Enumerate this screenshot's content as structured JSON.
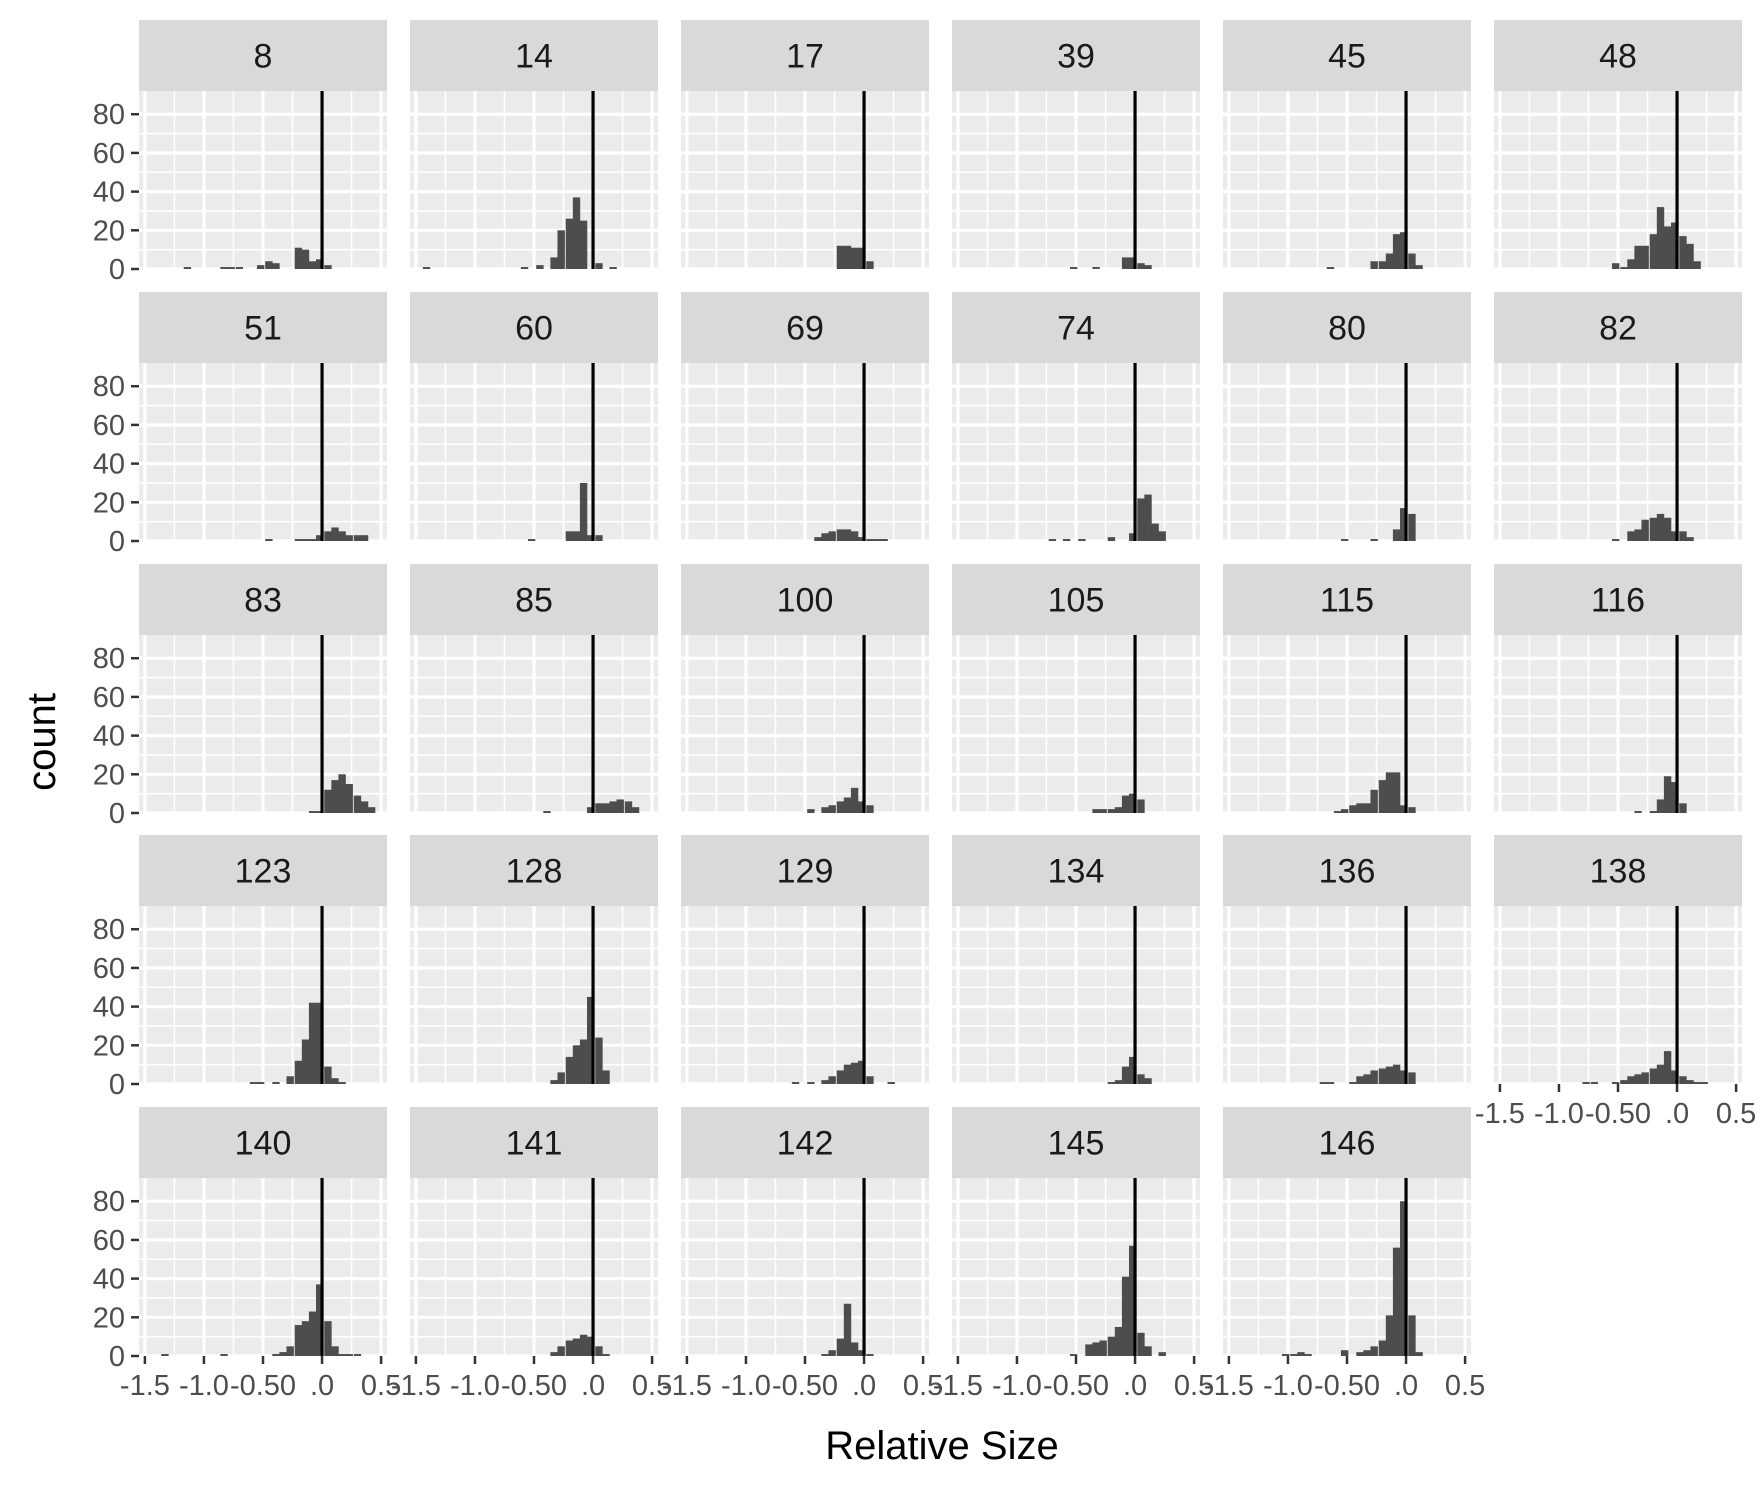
{
  "chart_data": {
    "type": "bar",
    "subtype": "faceted-histogram",
    "xlabel": "Relative Size",
    "ylabel": "count",
    "xlim": [
      -1.55,
      0.55
    ],
    "ylim": [
      0,
      92
    ],
    "x_ticks": [
      -1.5,
      -1.0,
      -0.5,
      0.0,
      0.5
    ],
    "x_tick_labels": [
      "-1.5",
      "-1.0",
      "-0.50",
      ".0",
      "0.5"
    ],
    "y_ticks": [
      0,
      20,
      40,
      60,
      80
    ],
    "y_tick_labels": [
      "0",
      "20",
      "40",
      "60",
      "80"
    ],
    "reference_line_x": 0,
    "bin_width": 0.0625,
    "grid": true,
    "columns": 6,
    "colors": {
      "panel_background": "#ebebeb",
      "grid": "#ffffff",
      "strip_background": "#d9d9d9",
      "bar_fill": "#4d4d4d",
      "reference_line": "#000000",
      "axis_ticks": "#333333"
    },
    "panels": [
      {
        "label": "8",
        "bins": [
          [
            -1.14,
            1
          ],
          [
            -0.83,
            1
          ],
          [
            -0.77,
            1
          ],
          [
            -0.7,
            1
          ],
          [
            -0.52,
            2
          ],
          [
            -0.45,
            4
          ],
          [
            -0.39,
            3
          ],
          [
            -0.2,
            11
          ],
          [
            -0.14,
            10
          ],
          [
            -0.08,
            4
          ],
          [
            -0.02,
            5
          ],
          [
            0.05,
            2
          ]
        ]
      },
      {
        "label": "14",
        "bins": [
          [
            -1.41,
            1
          ],
          [
            -0.58,
            1
          ],
          [
            -0.45,
            2
          ],
          [
            -0.33,
            6
          ],
          [
            -0.27,
            20
          ],
          [
            -0.2,
            26
          ],
          [
            -0.14,
            37
          ],
          [
            -0.08,
            25
          ],
          [
            0.05,
            3
          ],
          [
            0.17,
            1
          ]
        ]
      },
      {
        "label": "17",
        "bins": [
          [
            -0.2,
            12
          ],
          [
            -0.14,
            12
          ],
          [
            -0.08,
            11
          ],
          [
            -0.02,
            11
          ],
          [
            0.05,
            4
          ]
        ]
      },
      {
        "label": "39",
        "bins": [
          [
            -0.52,
            1
          ],
          [
            -0.33,
            1
          ],
          [
            -0.08,
            6
          ],
          [
            -0.02,
            6
          ],
          [
            0.05,
            3
          ],
          [
            0.11,
            2
          ]
        ]
      },
      {
        "label": "45",
        "bins": [
          [
            -0.64,
            1
          ],
          [
            -0.27,
            4
          ],
          [
            -0.2,
            4
          ],
          [
            -0.14,
            8
          ],
          [
            -0.08,
            18
          ],
          [
            -0.02,
            19
          ],
          [
            0.05,
            8
          ],
          [
            0.11,
            2
          ]
        ]
      },
      {
        "label": "48",
        "bins": [
          [
            -0.52,
            3
          ],
          [
            -0.45,
            1
          ],
          [
            -0.39,
            5
          ],
          [
            -0.33,
            12
          ],
          [
            -0.27,
            12
          ],
          [
            -0.2,
            18
          ],
          [
            -0.14,
            32
          ],
          [
            -0.08,
            22
          ],
          [
            -0.02,
            24
          ],
          [
            0.05,
            17
          ],
          [
            0.11,
            13
          ],
          [
            0.17,
            4
          ]
        ]
      },
      {
        "label": "51",
        "bins": [
          [
            -0.45,
            1
          ],
          [
            -0.2,
            1
          ],
          [
            -0.14,
            1
          ],
          [
            -0.08,
            1
          ],
          [
            -0.02,
            3
          ],
          [
            0.05,
            5
          ],
          [
            0.11,
            7
          ],
          [
            0.17,
            5
          ],
          [
            0.23,
            3
          ],
          [
            0.3,
            3
          ],
          [
            0.36,
            3
          ]
        ]
      },
      {
        "label": "60",
        "bins": [
          [
            -0.52,
            1
          ],
          [
            -0.2,
            5
          ],
          [
            -0.14,
            5
          ],
          [
            -0.08,
            30
          ],
          [
            -0.02,
            3
          ],
          [
            0.05,
            3
          ]
        ]
      },
      {
        "label": "69",
        "bins": [
          [
            -0.39,
            2
          ],
          [
            -0.33,
            4
          ],
          [
            -0.27,
            5
          ],
          [
            -0.2,
            6
          ],
          [
            -0.14,
            6
          ],
          [
            -0.08,
            5
          ],
          [
            -0.02,
            2
          ],
          [
            0.05,
            1
          ],
          [
            0.11,
            1
          ],
          [
            0.17,
            1
          ]
        ]
      },
      {
        "label": "74",
        "bins": [
          [
            -0.7,
            1
          ],
          [
            -0.58,
            1
          ],
          [
            -0.45,
            1
          ],
          [
            -0.2,
            2
          ],
          [
            -0.02,
            4
          ],
          [
            0.05,
            22
          ],
          [
            0.11,
            24
          ],
          [
            0.17,
            9
          ],
          [
            0.23,
            5
          ]
        ]
      },
      {
        "label": "80",
        "bins": [
          [
            -0.52,
            1
          ],
          [
            -0.27,
            1
          ],
          [
            -0.08,
            6
          ],
          [
            -0.02,
            17
          ],
          [
            0.05,
            14
          ]
        ]
      },
      {
        "label": "82",
        "bins": [
          [
            -0.52,
            1
          ],
          [
            -0.39,
            5
          ],
          [
            -0.33,
            6
          ],
          [
            -0.27,
            11
          ],
          [
            -0.2,
            12
          ],
          [
            -0.14,
            14
          ],
          [
            -0.08,
            12
          ],
          [
            -0.02,
            5
          ],
          [
            0.05,
            5
          ],
          [
            0.11,
            2
          ]
        ]
      },
      {
        "label": "83",
        "bins": [
          [
            -0.08,
            1
          ],
          [
            -0.02,
            1
          ],
          [
            0.05,
            12
          ],
          [
            0.11,
            17
          ],
          [
            0.17,
            20
          ],
          [
            0.23,
            15
          ],
          [
            0.3,
            9
          ],
          [
            0.36,
            6
          ],
          [
            0.42,
            3
          ]
        ]
      },
      {
        "label": "85",
        "bins": [
          [
            -0.39,
            1
          ],
          [
            -0.02,
            3
          ],
          [
            0.05,
            5
          ],
          [
            0.11,
            5
          ],
          [
            0.17,
            6
          ],
          [
            0.23,
            7
          ],
          [
            0.3,
            6
          ],
          [
            0.36,
            3
          ]
        ]
      },
      {
        "label": "100",
        "bins": [
          [
            -0.45,
            2
          ],
          [
            -0.33,
            3
          ],
          [
            -0.27,
            4
          ],
          [
            -0.2,
            6
          ],
          [
            -0.14,
            8
          ],
          [
            -0.08,
            13
          ],
          [
            -0.02,
            6
          ],
          [
            0.05,
            4
          ]
        ]
      },
      {
        "label": "105",
        "bins": [
          [
            -0.33,
            2
          ],
          [
            -0.27,
            2
          ],
          [
            -0.2,
            2
          ],
          [
            -0.14,
            3
          ],
          [
            -0.08,
            9
          ],
          [
            -0.02,
            10
          ],
          [
            0.05,
            7
          ]
        ]
      },
      {
        "label": "115",
        "bins": [
          [
            -0.58,
            1
          ],
          [
            -0.52,
            2
          ],
          [
            -0.45,
            4
          ],
          [
            -0.39,
            5
          ],
          [
            -0.33,
            5
          ],
          [
            -0.27,
            12
          ],
          [
            -0.2,
            17
          ],
          [
            -0.14,
            21
          ],
          [
            -0.08,
            21
          ],
          [
            -0.02,
            4
          ],
          [
            0.05,
            3
          ]
        ]
      },
      {
        "label": "116",
        "bins": [
          [
            -0.33,
            1
          ],
          [
            -0.2,
            1
          ],
          [
            -0.14,
            7
          ],
          [
            -0.08,
            19
          ],
          [
            -0.02,
            16
          ],
          [
            0.05,
            5
          ]
        ]
      },
      {
        "label": "123",
        "bins": [
          [
            -0.58,
            1
          ],
          [
            -0.52,
            1
          ],
          [
            -0.39,
            1
          ],
          [
            -0.27,
            4
          ],
          [
            -0.2,
            12
          ],
          [
            -0.14,
            23
          ],
          [
            -0.08,
            42
          ],
          [
            -0.02,
            42
          ],
          [
            0.05,
            9
          ],
          [
            0.11,
            3
          ],
          [
            0.17,
            1
          ]
        ]
      },
      {
        "label": "128",
        "bins": [
          [
            -0.33,
            2
          ],
          [
            -0.27,
            6
          ],
          [
            -0.2,
            14
          ],
          [
            -0.14,
            20
          ],
          [
            -0.08,
            23
          ],
          [
            -0.02,
            45
          ],
          [
            0.05,
            24
          ],
          [
            0.11,
            7
          ]
        ]
      },
      {
        "label": "129",
        "bins": [
          [
            -0.58,
            1
          ],
          [
            -0.45,
            1
          ],
          [
            -0.33,
            2
          ],
          [
            -0.27,
            4
          ],
          [
            -0.2,
            7
          ],
          [
            -0.14,
            10
          ],
          [
            -0.08,
            11
          ],
          [
            -0.02,
            12
          ],
          [
            0.05,
            4
          ],
          [
            0.23,
            1
          ]
        ]
      },
      {
        "label": "134",
        "bins": [
          [
            -0.2,
            1
          ],
          [
            -0.14,
            2
          ],
          [
            -0.08,
            9
          ],
          [
            -0.02,
            14
          ],
          [
            0.05,
            5
          ],
          [
            0.11,
            3
          ]
        ]
      },
      {
        "label": "136",
        "bins": [
          [
            -0.7,
            1
          ],
          [
            -0.64,
            1
          ],
          [
            -0.45,
            1
          ],
          [
            -0.39,
            4
          ],
          [
            -0.33,
            5
          ],
          [
            -0.27,
            7
          ],
          [
            -0.2,
            8
          ],
          [
            -0.14,
            9
          ],
          [
            -0.08,
            10
          ],
          [
            -0.02,
            7
          ],
          [
            0.05,
            6
          ]
        ]
      },
      {
        "label": "138",
        "bins": [
          [
            -0.77,
            1
          ],
          [
            -0.7,
            1
          ],
          [
            -0.52,
            1
          ],
          [
            -0.45,
            2
          ],
          [
            -0.39,
            4
          ],
          [
            -0.33,
            5
          ],
          [
            -0.27,
            6
          ],
          [
            -0.2,
            8
          ],
          [
            -0.14,
            10
          ],
          [
            -0.08,
            17
          ],
          [
            -0.02,
            7
          ],
          [
            0.05,
            4
          ],
          [
            0.11,
            2
          ],
          [
            0.17,
            1
          ],
          [
            0.23,
            1
          ]
        ]
      },
      {
        "label": "140",
        "bins": [
          [
            -1.33,
            1
          ],
          [
            -0.83,
            1
          ],
          [
            -0.39,
            1
          ],
          [
            -0.33,
            2
          ],
          [
            -0.27,
            5
          ],
          [
            -0.2,
            16
          ],
          [
            -0.14,
            18
          ],
          [
            -0.08,
            23
          ],
          [
            -0.02,
            37
          ],
          [
            0.05,
            18
          ],
          [
            0.11,
            5
          ],
          [
            0.17,
            1
          ],
          [
            0.23,
            1
          ],
          [
            0.3,
            1
          ]
        ]
      },
      {
        "label": "141",
        "bins": [
          [
            -0.33,
            2
          ],
          [
            -0.27,
            5
          ],
          [
            -0.2,
            8
          ],
          [
            -0.14,
            9
          ],
          [
            -0.08,
            11
          ],
          [
            -0.02,
            10
          ],
          [
            0.05,
            5
          ],
          [
            0.11,
            1
          ]
        ]
      },
      {
        "label": "142",
        "bins": [
          [
            -0.33,
            1
          ],
          [
            -0.27,
            3
          ],
          [
            -0.2,
            9
          ],
          [
            -0.14,
            27
          ],
          [
            -0.08,
            7
          ],
          [
            -0.02,
            3
          ],
          [
            0.05,
            1
          ]
        ]
      },
      {
        "label": "145",
        "bins": [
          [
            -0.52,
            1
          ],
          [
            -0.39,
            6
          ],
          [
            -0.33,
            7
          ],
          [
            -0.27,
            8
          ],
          [
            -0.2,
            10
          ],
          [
            -0.14,
            15
          ],
          [
            -0.08,
            41
          ],
          [
            -0.02,
            57
          ],
          [
            0.05,
            12
          ],
          [
            0.11,
            5
          ],
          [
            0.23,
            2
          ]
        ]
      },
      {
        "label": "146",
        "bins": [
          [
            -1.02,
            1
          ],
          [
            -0.95,
            1
          ],
          [
            -0.89,
            2
          ],
          [
            -0.83,
            1
          ],
          [
            -0.52,
            3
          ],
          [
            -0.39,
            2
          ],
          [
            -0.33,
            3
          ],
          [
            -0.27,
            5
          ],
          [
            -0.2,
            8
          ],
          [
            -0.14,
            21
          ],
          [
            -0.08,
            56
          ],
          [
            -0.02,
            80
          ],
          [
            0.05,
            21
          ],
          [
            0.11,
            2
          ]
        ]
      }
    ]
  }
}
